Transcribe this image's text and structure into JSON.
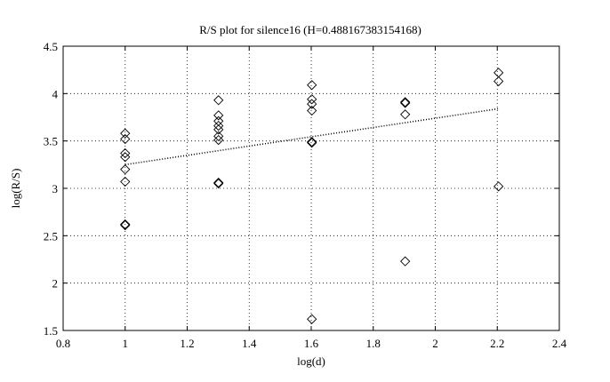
{
  "chart_data": {
    "type": "scatter",
    "title": "R/S plot for silence16 (H=0.488167383154168)",
    "xlabel": "log(d)",
    "ylabel": "log(R/S)",
    "xlim": [
      0.8,
      2.4
    ],
    "ylim": [
      1.5,
      4.5
    ],
    "xticks": [
      "0.8",
      "1",
      "1.2",
      "1.4",
      "1.6",
      "1.8",
      "2",
      "2.2",
      "2.4"
    ],
    "yticks": [
      "1.5",
      "2",
      "2.5",
      "3",
      "3.5",
      "4",
      "4.5"
    ],
    "grid": true,
    "marker": "diamond",
    "points": [
      {
        "x": 1.0,
        "y": 3.58
      },
      {
        "x": 1.0,
        "y": 3.52
      },
      {
        "x": 1.0,
        "y": 3.37
      },
      {
        "x": 1.0,
        "y": 3.33
      },
      {
        "x": 1.0,
        "y": 3.2
      },
      {
        "x": 1.0,
        "y": 3.07
      },
      {
        "x": 1.0,
        "y": 2.62
      },
      {
        "x": 1.0,
        "y": 2.61
      },
      {
        "x": 1.301,
        "y": 3.93
      },
      {
        "x": 1.301,
        "y": 3.77
      },
      {
        "x": 1.301,
        "y": 3.71
      },
      {
        "x": 1.301,
        "y": 3.66
      },
      {
        "x": 1.301,
        "y": 3.62
      },
      {
        "x": 1.301,
        "y": 3.55
      },
      {
        "x": 1.301,
        "y": 3.51
      },
      {
        "x": 1.301,
        "y": 3.06
      },
      {
        "x": 1.301,
        "y": 3.05
      },
      {
        "x": 1.602,
        "y": 4.09
      },
      {
        "x": 1.602,
        "y": 3.94
      },
      {
        "x": 1.602,
        "y": 3.89
      },
      {
        "x": 1.602,
        "y": 3.82
      },
      {
        "x": 1.602,
        "y": 3.49
      },
      {
        "x": 1.602,
        "y": 3.48
      },
      {
        "x": 1.602,
        "y": 1.62
      },
      {
        "x": 1.903,
        "y": 3.91
      },
      {
        "x": 1.903,
        "y": 3.9
      },
      {
        "x": 1.903,
        "y": 3.78
      },
      {
        "x": 1.903,
        "y": 2.23
      },
      {
        "x": 2.204,
        "y": 4.22
      },
      {
        "x": 2.204,
        "y": 4.13
      },
      {
        "x": 2.204,
        "y": 3.02
      }
    ],
    "fit_line": {
      "x": [
        1.0,
        2.204
      ],
      "y": [
        3.25,
        3.84
      ],
      "style": "dotted"
    }
  }
}
